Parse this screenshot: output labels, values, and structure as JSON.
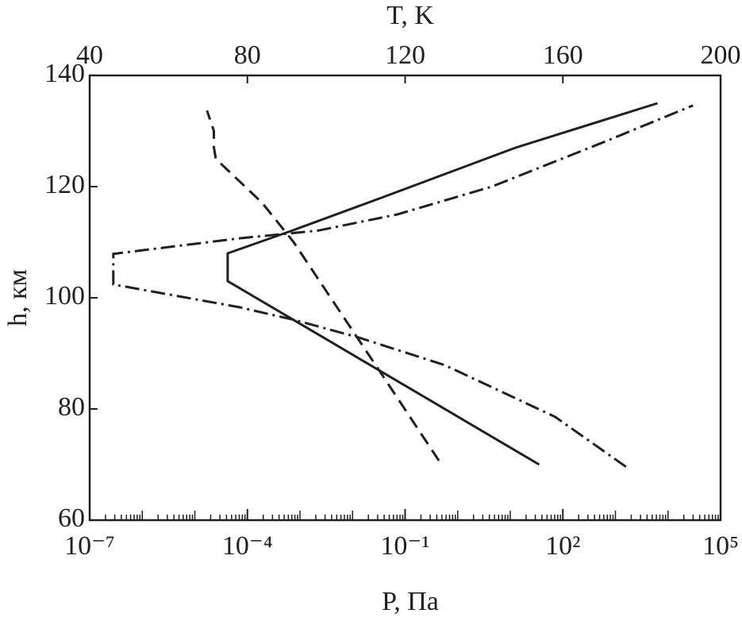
{
  "chart_data": {
    "type": "line",
    "xlabel": "P, Па",
    "x2label": "T, K",
    "ylabel": "h, км",
    "xscale": "log",
    "xlim": [
      1e-07,
      100000.0
    ],
    "xticks": [
      {
        "value": 1e-07,
        "label": "10⁻⁷"
      },
      {
        "value": 0.0001,
        "label": "10⁻⁴"
      },
      {
        "value": 0.1,
        "label": "10⁻¹"
      },
      {
        "value": 100,
        "label": "10²"
      },
      {
        "value": 100000,
        "label": "10⁵"
      }
    ],
    "x2lim": [
      40,
      200
    ],
    "x2ticks": [
      40,
      80,
      120,
      160,
      200
    ],
    "ylim": [
      60,
      140
    ],
    "yticks": [
      60,
      80,
      100,
      120,
      140
    ],
    "color": "#231f20",
    "series": [
      {
        "style": "solid",
        "xaxis": "x2",
        "x": [
          154,
          75,
          75,
          91,
          114,
          148,
          184
        ],
        "y": [
          70,
          103,
          108,
          112,
          118,
          127,
          135
        ]
      },
      {
        "style": "dashdot",
        "xaxis": "x2",
        "x": [
          176,
          158,
          130,
          108,
          92,
          78,
          46,
          46,
          78,
          98,
          118,
          142,
          170,
          193
        ],
        "y": [
          69.6,
          78.6,
          87.9,
          92.9,
          96,
          98.3,
          102.4,
          107.9,
          110.7,
          112.1,
          115,
          120,
          127.9,
          134.6
        ]
      },
      {
        "style": "dashed",
        "xaxis": "x",
        "x": [
          0.44,
          0.035,
          0.0043,
          0.00076,
          0.00019,
          2.5e-05,
          2.3e-05,
          2.3e-05,
          1.7e-05
        ],
        "y": [
          70.7,
          86.4,
          99.3,
          110,
          117.1,
          125,
          127.1,
          130,
          133.7
        ]
      }
    ]
  }
}
